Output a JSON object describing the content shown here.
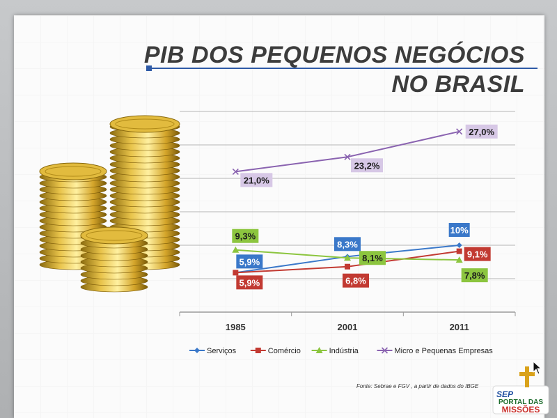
{
  "slide": {
    "title_line1": "PIB DOS PEQUENOS NEGÓCIOS",
    "title_line2": "NO BRASIL",
    "source": "Fonte: Sebrae e FGV , a partir de dados do IBGE",
    "logo_text_top": "PORTAL DAS",
    "logo_text_bottom": "MISSÕES",
    "logo_badge": "SEP"
  },
  "chart_data": {
    "type": "line",
    "categories": [
      "1985",
      "2001",
      "2011"
    ],
    "ylim": [
      0,
      30
    ],
    "grid": true,
    "legend_position": "bottom",
    "series": [
      {
        "name": "Serviços",
        "values": [
          5.9,
          8.3,
          10
        ],
        "labels": [
          "5,9%",
          "8,3%",
          "10%"
        ],
        "color": "#3a78c9",
        "marker": "diamond"
      },
      {
        "name": "Comércio",
        "values": [
          5.9,
          6.8,
          9.1
        ],
        "labels": [
          "5,9%",
          "6,8%",
          "9,1%"
        ],
        "color": "#c23a32",
        "marker": "square"
      },
      {
        "name": "Indústria",
        "values": [
          9.3,
          8.1,
          7.8
        ],
        "labels": [
          "9,3%",
          "8,1%",
          "7,8%"
        ],
        "color": "#8cc53f",
        "marker": "triangle"
      },
      {
        "name": "Micro e Pequenas Empresas",
        "values": [
          21.0,
          23.2,
          27.0
        ],
        "labels": [
          "21,0%",
          "23,2%",
          "27,0%"
        ],
        "color": "#8a63b0",
        "marker": "x"
      }
    ]
  }
}
